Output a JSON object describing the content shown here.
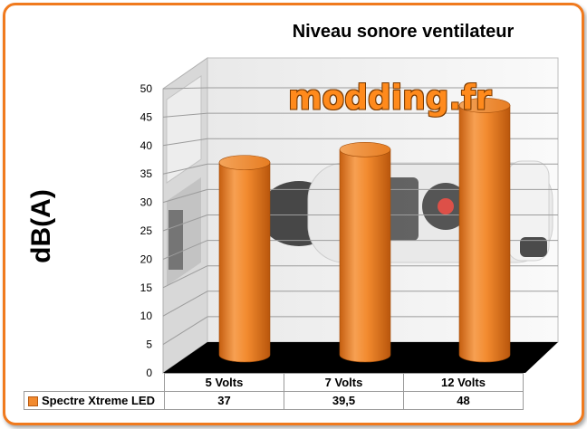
{
  "chart_data": {
    "type": "bar",
    "title": "Niveau sonore ventilateur",
    "ylabel": "dB(A)",
    "xlabel": "",
    "categories": [
      "5 Volts",
      "7 Volts",
      "12 Volts"
    ],
    "series": [
      {
        "name": "Spectre Xtreme LED",
        "values": [
          37,
          39.5,
          48
        ],
        "value_labels": [
          "37",
          "39,5",
          "48"
        ]
      }
    ],
    "ylim": [
      0,
      50
    ],
    "yticks": [
      0,
      5,
      10,
      15,
      20,
      25,
      30,
      35,
      40,
      45,
      50
    ],
    "grid": true,
    "legend": "data-table-bottom",
    "bar_color": "#f28a2e",
    "floor_color": "#000000"
  },
  "watermark": {
    "text": "modding.fr"
  },
  "theme": {
    "frame_color": "#f07a1e",
    "bar_color": "#f28a2e"
  }
}
